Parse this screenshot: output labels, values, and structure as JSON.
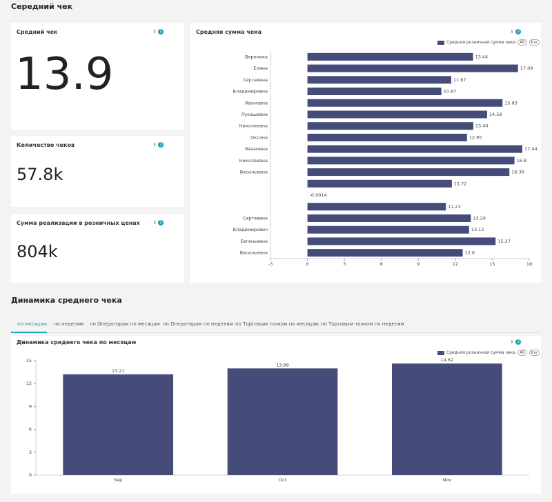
{
  "header": {
    "title": "Середний чек"
  },
  "kpis": [
    {
      "title": "Средний чек",
      "value": "13.9",
      "filters": 2
    },
    {
      "title": "Количество чеков",
      "value": "57.8k",
      "filters": 2
    },
    {
      "title": "Сумма реализации в розничных ценах",
      "value": "804k",
      "filters": 2
    }
  ],
  "section2": {
    "title": "Динамика среднего чека",
    "tabs": [
      "по месяцам",
      "по неделям",
      "по Операторам по месяцам",
      "по Операторам по неделям",
      "по Торговым точкам по месяцам",
      "по Торговым точкам по неделям"
    ]
  },
  "chart_data": [
    {
      "type": "bar",
      "horizontal": true,
      "title": "Средняя сумма чека",
      "filters": 2,
      "legend_buttons": [
        "All",
        "Inv"
      ],
      "categories": [
        "Вероника",
        "Елена",
        "Сергеевна",
        "Владимировна",
        "Ивановна",
        "Лукашевна",
        "Николаевна",
        "Оксана",
        "Ивановна",
        "Николаевна",
        "Васильевна",
        null,
        null,
        null,
        "Сергеевна",
        "Владимирович",
        "Евгеньевна",
        "Васильевна"
      ],
      "series": [
        {
          "name": "Средняя розничная сумма чека",
          "color": "#454c7a",
          "values": [
            13.44,
            17.09,
            11.67,
            10.87,
            15.83,
            14.58,
            13.46,
            12.95,
            17.44,
            16.8,
            16.39,
            11.72,
            -0.0014,
            11.23,
            13.26,
            13.12,
            15.27,
            12.6
          ]
        }
      ],
      "xlim": [
        -3,
        18
      ],
      "xticks": [
        -3,
        0,
        3,
        6,
        9,
        12,
        15,
        18
      ]
    },
    {
      "type": "bar",
      "horizontal": false,
      "title": "Динамика среднего чека по месяцам",
      "filters": 2,
      "legend_buttons": [
        "All",
        "Inv"
      ],
      "categories": [
        "Sep",
        "Oct",
        "Nov"
      ],
      "series": [
        {
          "name": "Средняя розничная сумма чека",
          "color": "#454c7a",
          "values": [
            13.21,
            13.98,
            14.62
          ]
        }
      ],
      "ylim": [
        0,
        15
      ],
      "yticks": [
        0,
        3,
        6,
        9,
        12,
        15
      ]
    }
  ]
}
